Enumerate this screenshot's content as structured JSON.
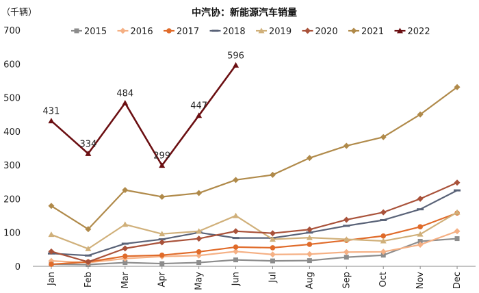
{
  "chart_data": {
    "type": "line",
    "title": "中汽协：新能源汽车销量",
    "unit_label": "（千辆）",
    "ylim": [
      0,
      700
    ],
    "y_ticks": [
      0,
      100,
      200,
      300,
      400,
      500,
      600,
      700
    ],
    "categories": [
      "Jan",
      "Feb",
      "Mar",
      "Apr",
      "May",
      "Jun",
      "Jul",
      "Aug",
      "Sep",
      "Oct",
      "Nov",
      "Dec"
    ],
    "legend_position": "top",
    "grid": false,
    "series": [
      {
        "name": "2015",
        "color": "#8c8c8c",
        "marker": "square",
        "values": [
          6,
          5,
          11,
          8,
          11,
          19,
          16,
          17,
          27,
          33,
          74,
          82
        ]
      },
      {
        "name": "2016",
        "color": "#f5b084",
        "marker": "diamond",
        "values": [
          16,
          11,
          23,
          29,
          32,
          44,
          35,
          36,
          42,
          43,
          64,
          104
        ]
      },
      {
        "name": "2017",
        "color": "#e06b2a",
        "marker": "circle",
        "values": [
          6,
          13,
          30,
          33,
          43,
          57,
          55,
          65,
          77,
          90,
          117,
          158
        ]
      },
      {
        "name": "2018",
        "color": "#5a6378",
        "marker": "dash",
        "values": [
          38,
          32,
          67,
          80,
          100,
          84,
          84,
          100,
          120,
          137,
          169,
          225
        ]
      },
      {
        "name": "2019",
        "color": "#d0b07a",
        "marker": "triangle",
        "values": [
          94,
          52,
          124,
          96,
          104,
          150,
          80,
          85,
          80,
          75,
          95,
          160
        ]
      },
      {
        "name": "2020",
        "color": "#a9523a",
        "marker": "diamond",
        "values": [
          44,
          13,
          53,
          71,
          82,
          104,
          98,
          109,
          138,
          160,
          200,
          248
        ]
      },
      {
        "name": "2021",
        "color": "#b08a4a",
        "marker": "diamond",
        "values": [
          179,
          110,
          226,
          206,
          217,
          256,
          271,
          321,
          357,
          383,
          450,
          531
        ]
      },
      {
        "name": "2022",
        "color": "#6b0f12",
        "marker": "triangle",
        "values": [
          431,
          334,
          484,
          299,
          447,
          596,
          null,
          null,
          null,
          null,
          null,
          null
        ],
        "data_labels": [
          "431",
          "334",
          "484",
          "299",
          "447",
          "596"
        ]
      }
    ]
  }
}
